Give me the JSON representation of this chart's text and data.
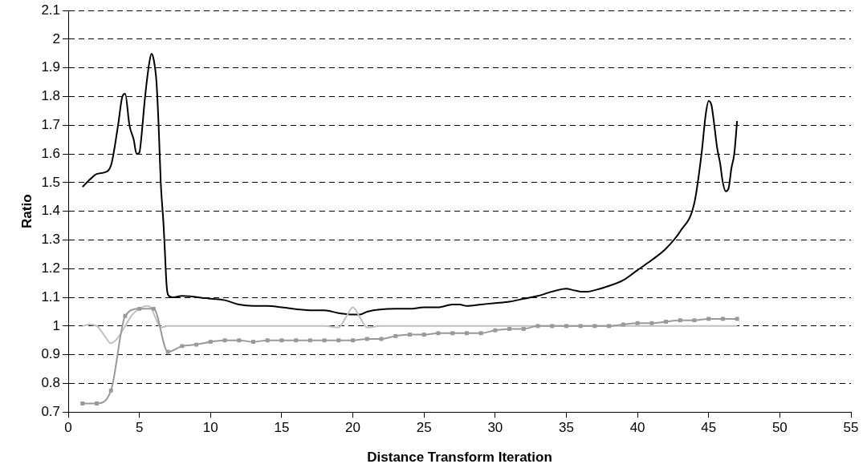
{
  "chart_data": {
    "type": "line",
    "xlabel": "Distance Transform Iteration",
    "ylabel": "Ratio",
    "xlim": [
      0,
      55
    ],
    "xticks": [
      0,
      5,
      10,
      15,
      20,
      25,
      30,
      35,
      40,
      45,
      50,
      55
    ],
    "ylim": [
      0.7,
      2.1
    ],
    "yticks": [
      0.7,
      0.8,
      0.9,
      1,
      1.1,
      1.2,
      1.3,
      1.4,
      1.5,
      1.6,
      1.7,
      1.8,
      1.9,
      2,
      2.1
    ],
    "grid": "y",
    "legend": false,
    "line_style": "solid",
    "series": [
      {
        "color": "#000000",
        "marker": "none",
        "x": [
          1,
          1.5,
          2,
          2.5,
          3,
          3.5,
          3.8,
          4,
          4.3,
          4.6,
          4.8,
          5,
          5.1,
          5.4,
          5.7,
          5.85,
          6,
          6.2,
          6.35,
          6.5,
          6.7,
          6.8,
          6.9,
          7,
          7.3,
          8,
          10,
          11,
          12,
          13,
          14,
          15,
          17,
          18,
          19,
          20,
          20.5,
          21,
          23,
          24,
          25,
          26,
          27,
          27.5,
          28,
          29,
          30,
          31,
          32,
          33,
          34,
          35,
          35.5,
          36,
          36.5,
          37,
          38,
          39,
          40,
          41,
          42,
          43,
          44,
          44.5,
          44.8,
          45,
          45.2,
          45.4,
          45.6,
          45.8,
          46,
          46.2,
          46.4,
          46.6,
          46.8,
          47
        ],
        "values": [
          1.485,
          1.51,
          1.53,
          1.535,
          1.56,
          1.7,
          1.8,
          1.81,
          1.7,
          1.65,
          1.6,
          1.605,
          1.64,
          1.8,
          1.92,
          1.95,
          1.93,
          1.85,
          1.7,
          1.5,
          1.35,
          1.25,
          1.15,
          1.11,
          1.1,
          1.105,
          1.095,
          1.09,
          1.075,
          1.07,
          1.07,
          1.065,
          1.055,
          1.055,
          1.045,
          1.04,
          1.04,
          1.05,
          1.06,
          1.06,
          1.065,
          1.065,
          1.075,
          1.075,
          1.07,
          1.075,
          1.08,
          1.085,
          1.095,
          1.105,
          1.12,
          1.13,
          1.125,
          1.12,
          1.12,
          1.125,
          1.14,
          1.16,
          1.195,
          1.23,
          1.27,
          1.33,
          1.43,
          1.6,
          1.74,
          1.785,
          1.77,
          1.7,
          1.62,
          1.57,
          1.5,
          1.47,
          1.48,
          1.55,
          1.6,
          1.715
        ]
      },
      {
        "color": "#c0c0c0",
        "marker": "none",
        "x": [
          1,
          1.5,
          2,
          2.5,
          3,
          3.5,
          4,
          4.5,
          5,
          5.5,
          5.8,
          6.2,
          6.5,
          7,
          18,
          19,
          19.5,
          20,
          20.5,
          21,
          22,
          47
        ],
        "values": [
          1.0,
          1.005,
          1.0,
          0.97,
          0.94,
          0.96,
          1.0,
          1.04,
          1.06,
          1.07,
          1.065,
          1.02,
          0.995,
          1.0,
          1.0,
          0.995,
          1.03,
          1.065,
          1.03,
          0.995,
          1.0,
          1.0
        ]
      },
      {
        "color": "#999999",
        "marker": "square",
        "x": [
          1,
          2,
          3,
          4,
          5,
          6,
          7,
          8,
          9,
          10,
          11,
          12,
          13,
          14,
          15,
          16,
          17,
          18,
          19,
          20,
          21,
          22,
          23,
          24,
          25,
          26,
          27,
          28,
          29,
          30,
          31,
          32,
          33,
          34,
          35,
          36,
          37,
          38,
          39,
          40,
          41,
          42,
          43,
          44,
          45,
          46,
          47
        ],
        "values": [
          0.73,
          0.73,
          0.775,
          1.035,
          1.06,
          1.06,
          0.91,
          0.93,
          0.935,
          0.945,
          0.95,
          0.95,
          0.945,
          0.95,
          0.95,
          0.95,
          0.95,
          0.95,
          0.95,
          0.95,
          0.955,
          0.955,
          0.965,
          0.97,
          0.97,
          0.975,
          0.975,
          0.975,
          0.975,
          0.985,
          0.99,
          0.99,
          1.0,
          1.0,
          1.0,
          1.0,
          1.0,
          1.0,
          1.005,
          1.01,
          1.01,
          1.015,
          1.02,
          1.02,
          1.025,
          1.025,
          1.025
        ]
      }
    ]
  }
}
